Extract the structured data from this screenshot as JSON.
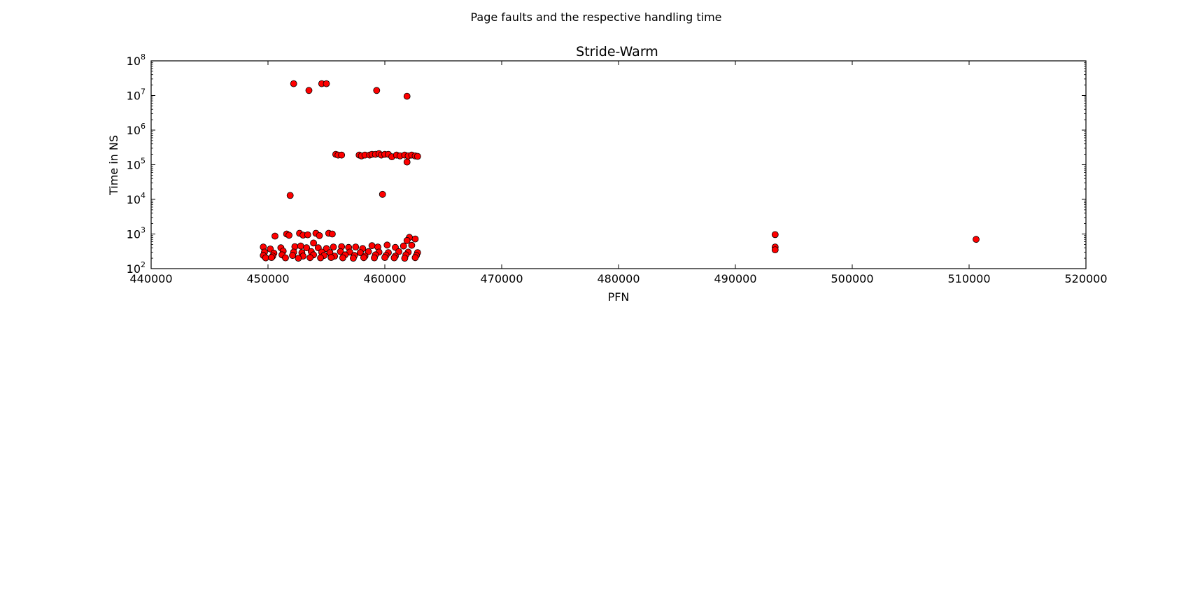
{
  "figure": {
    "suptitle": "Page faults and the respective handling time"
  },
  "chart_data": {
    "type": "scatter",
    "title": "Stride-Warm",
    "xlabel": "PFN",
    "ylabel": "Time in NS",
    "xlim": [
      440000,
      520000
    ],
    "ylim": [
      100,
      100000000
    ],
    "yscale": "log",
    "grid": false,
    "legend": "none",
    "marker_color": "#ff0000",
    "marker_edge_color": "#000000",
    "x_ticks": [
      440000,
      450000,
      460000,
      470000,
      480000,
      490000,
      500000,
      510000,
      520000
    ],
    "x_tick_labels": [
      "440000",
      "450000",
      "460000",
      "470000",
      "480000",
      "490000",
      "500000",
      "510000",
      "520000"
    ],
    "y_ticks": [
      100,
      1000,
      10000,
      100000,
      1000000,
      10000000,
      100000000
    ],
    "y_tick_labels": [
      {
        "base": "10",
        "exp": "2"
      },
      {
        "base": "10",
        "exp": "3"
      },
      {
        "base": "10",
        "exp": "4"
      },
      {
        "base": "10",
        "exp": "5"
      },
      {
        "base": "10",
        "exp": "6"
      },
      {
        "base": "10",
        "exp": "7"
      },
      {
        "base": "10",
        "exp": "8"
      }
    ],
    "points": [
      [
        452200,
        22000000
      ],
      [
        453500,
        14000000
      ],
      [
        454600,
        22000000
      ],
      [
        455000,
        22000000
      ],
      [
        459300,
        14000000
      ],
      [
        461900,
        9500000
      ],
      [
        455800,
        200000
      ],
      [
        456000,
        190000
      ],
      [
        456300,
        190000
      ],
      [
        457800,
        190000
      ],
      [
        458000,
        180000
      ],
      [
        458300,
        190000
      ],
      [
        458700,
        190000
      ],
      [
        458900,
        200000
      ],
      [
        459200,
        200000
      ],
      [
        459500,
        210000
      ],
      [
        459700,
        190000
      ],
      [
        460000,
        200000
      ],
      [
        460300,
        200000
      ],
      [
        460600,
        170000
      ],
      [
        461000,
        190000
      ],
      [
        461300,
        180000
      ],
      [
        461700,
        190000
      ],
      [
        462000,
        180000
      ],
      [
        462300,
        190000
      ],
      [
        462600,
        180000
      ],
      [
        462800,
        175000
      ],
      [
        461900,
        120000
      ],
      [
        451900,
        13000
      ],
      [
        459800,
        14000
      ],
      [
        450600,
        870
      ],
      [
        451600,
        1000
      ],
      [
        451800,
        920
      ],
      [
        452700,
        1050
      ],
      [
        453000,
        930
      ],
      [
        453400,
        950
      ],
      [
        454100,
        1050
      ],
      [
        454400,
        900
      ],
      [
        455200,
        1050
      ],
      [
        455500,
        1000
      ],
      [
        462100,
        800
      ],
      [
        462600,
        720
      ],
      [
        461900,
        650
      ],
      [
        449600,
        420
      ],
      [
        450200,
        370
      ],
      [
        451100,
        400
      ],
      [
        452300,
        430
      ],
      [
        452800,
        450
      ],
      [
        453300,
        400
      ],
      [
        453900,
        550
      ],
      [
        454300,
        400
      ],
      [
        455000,
        380
      ],
      [
        455600,
        420
      ],
      [
        456300,
        430
      ],
      [
        456900,
        410
      ],
      [
        457500,
        420
      ],
      [
        458100,
        380
      ],
      [
        458900,
        460
      ],
      [
        459400,
        420
      ],
      [
        460200,
        480
      ],
      [
        460900,
        410
      ],
      [
        461600,
        450
      ],
      [
        462300,
        470
      ],
      [
        449700,
        300
      ],
      [
        450500,
        280
      ],
      [
        451300,
        320
      ],
      [
        452200,
        300
      ],
      [
        452900,
        290
      ],
      [
        453700,
        310
      ],
      [
        454600,
        300
      ],
      [
        455300,
        290
      ],
      [
        456200,
        310
      ],
      [
        457000,
        300
      ],
      [
        457900,
        290
      ],
      [
        458600,
        310
      ],
      [
        459500,
        300
      ],
      [
        460300,
        290
      ],
      [
        461200,
        310
      ],
      [
        462000,
        300
      ],
      [
        462800,
        290
      ],
      [
        449600,
        240
      ],
      [
        450400,
        230
      ],
      [
        451200,
        250
      ],
      [
        452100,
        240
      ],
      [
        453000,
        230
      ],
      [
        453900,
        250
      ],
      [
        454800,
        240
      ],
      [
        455700,
        230
      ],
      [
        456600,
        250
      ],
      [
        457400,
        240
      ],
      [
        458300,
        230
      ],
      [
        459200,
        250
      ],
      [
        460100,
        240
      ],
      [
        460900,
        230
      ],
      [
        461800,
        250
      ],
      [
        462700,
        240
      ],
      [
        449800,
        205
      ],
      [
        450300,
        210
      ],
      [
        451500,
        205
      ],
      [
        452600,
        200
      ],
      [
        453600,
        208
      ],
      [
        454500,
        205
      ],
      [
        455400,
        210
      ],
      [
        456400,
        205
      ],
      [
        457300,
        200
      ],
      [
        458200,
        208
      ],
      [
        459100,
        205
      ],
      [
        460000,
        210
      ],
      [
        460800,
        205
      ],
      [
        461700,
        200
      ],
      [
        462600,
        208
      ],
      [
        493400,
        960
      ],
      [
        493400,
        420
      ],
      [
        493400,
        350
      ],
      [
        510600,
        700
      ]
    ]
  }
}
